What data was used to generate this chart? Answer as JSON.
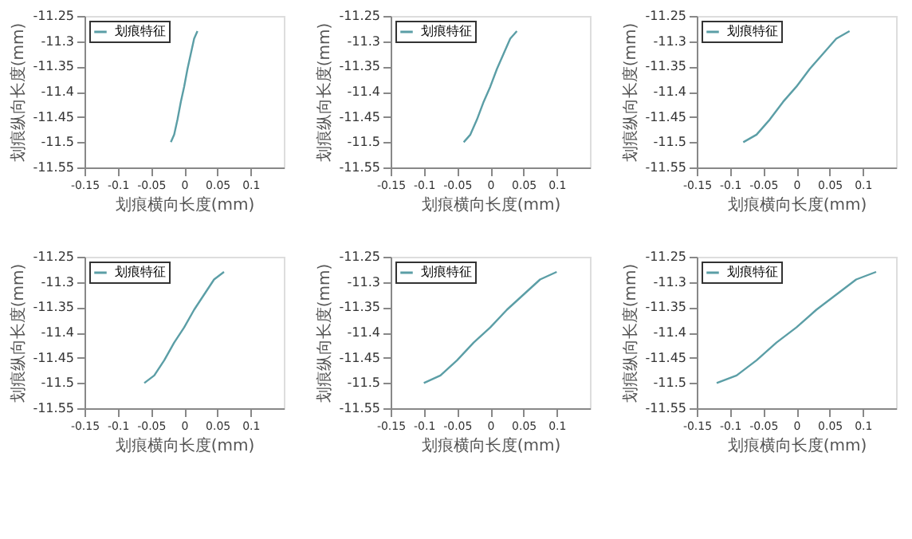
{
  "chart_data": [
    {
      "type": "line",
      "xlabel": "划痕横向长度(mm)",
      "ylabel": "划痕纵向长度(mm)",
      "xlim": [
        -0.15,
        0.15
      ],
      "ylim": [
        -11.55,
        -11.25
      ],
      "xticks": [
        -0.15,
        -0.1,
        -0.05,
        0,
        0.05,
        0.1
      ],
      "yticks": [
        -11.55,
        -11.5,
        -11.45,
        -11.4,
        -11.35,
        -11.3,
        -11.25
      ],
      "legend": "top left",
      "grid": false,
      "x": [
        -0.02,
        -0.015,
        -0.01,
        -0.005,
        0,
        0.005,
        0.01,
        0.015,
        0.02
      ],
      "series": [
        {
          "name": "划痕特征",
          "color": "#5b9ea6",
          "values": [
            -11.5,
            -11.485,
            -11.455,
            -11.42,
            -11.39,
            -11.355,
            -11.325,
            -11.295,
            -11.28
          ]
        }
      ]
    },
    {
      "type": "line",
      "xlabel": "划痕横向长度(mm)",
      "ylabel": "划痕纵向长度(mm)",
      "xlim": [
        -0.15,
        0.15
      ],
      "ylim": [
        -11.55,
        -11.25
      ],
      "xticks": [
        -0.15,
        -0.1,
        -0.05,
        0,
        0.05,
        0.1
      ],
      "yticks": [
        -11.55,
        -11.5,
        -11.45,
        -11.4,
        -11.35,
        -11.3,
        -11.25
      ],
      "legend": "top left",
      "grid": false,
      "x": [
        -0.04,
        -0.03,
        -0.02,
        -0.01,
        0,
        0.01,
        0.02,
        0.03,
        0.04
      ],
      "series": [
        {
          "name": "划痕特征",
          "color": "#5b9ea6",
          "values": [
            -11.5,
            -11.485,
            -11.455,
            -11.42,
            -11.39,
            -11.355,
            -11.325,
            -11.295,
            -11.28
          ]
        }
      ]
    },
    {
      "type": "line",
      "xlabel": "划痕横向长度(mm)",
      "ylabel": "划痕纵向长度(mm)",
      "xlim": [
        -0.15,
        0.15
      ],
      "ylim": [
        -11.55,
        -11.25
      ],
      "xticks": [
        -0.15,
        -0.1,
        -0.05,
        0,
        0.05,
        0.1
      ],
      "yticks": [
        -11.55,
        -11.5,
        -11.45,
        -11.4,
        -11.35,
        -11.3,
        -11.25
      ],
      "legend": "top left",
      "grid": false,
      "x": [
        -0.08,
        -0.06,
        -0.04,
        -0.02,
        0,
        0.02,
        0.04,
        0.06,
        0.08
      ],
      "series": [
        {
          "name": "划痕特征",
          "color": "#5b9ea6",
          "values": [
            -11.5,
            -11.485,
            -11.455,
            -11.42,
            -11.39,
            -11.355,
            -11.325,
            -11.295,
            -11.28
          ]
        }
      ]
    },
    {
      "type": "line",
      "xlabel": "划痕横向长度(mm)",
      "ylabel": "划痕纵向长度(mm)",
      "xlim": [
        -0.15,
        0.15
      ],
      "ylim": [
        -11.55,
        -11.25
      ],
      "xticks": [
        -0.15,
        -0.1,
        -0.05,
        0,
        0.05,
        0.1
      ],
      "yticks": [
        -11.55,
        -11.5,
        -11.45,
        -11.4,
        -11.35,
        -11.3,
        -11.25
      ],
      "legend": "top left",
      "grid": false,
      "x": [
        -0.06,
        -0.045,
        -0.03,
        -0.015,
        0,
        0.015,
        0.03,
        0.045,
        0.06
      ],
      "series": [
        {
          "name": "划痕特征",
          "color": "#5b9ea6",
          "values": [
            -11.5,
            -11.485,
            -11.455,
            -11.42,
            -11.39,
            -11.355,
            -11.325,
            -11.295,
            -11.28
          ]
        }
      ]
    },
    {
      "type": "line",
      "xlabel": "划痕横向长度(mm)",
      "ylabel": "划痕纵向长度(mm)",
      "xlim": [
        -0.15,
        0.15
      ],
      "ylim": [
        -11.55,
        -11.25
      ],
      "xticks": [
        -0.15,
        -0.1,
        -0.05,
        0,
        0.05,
        0.1
      ],
      "yticks": [
        -11.55,
        -11.5,
        -11.45,
        -11.4,
        -11.35,
        -11.3,
        -11.25
      ],
      "legend": "top left",
      "grid": false,
      "x": [
        -0.1,
        -0.075,
        -0.05,
        -0.025,
        0,
        0.025,
        0.05,
        0.075,
        0.1
      ],
      "series": [
        {
          "name": "划痕特征",
          "color": "#5b9ea6",
          "values": [
            -11.5,
            -11.485,
            -11.455,
            -11.42,
            -11.39,
            -11.355,
            -11.325,
            -11.295,
            -11.28
          ]
        }
      ]
    },
    {
      "type": "line",
      "xlabel": "划痕横向长度(mm)",
      "ylabel": "划痕纵向长度(mm)",
      "xlim": [
        -0.15,
        0.15
      ],
      "ylim": [
        -11.55,
        -11.25
      ],
      "xticks": [
        -0.15,
        -0.1,
        -0.05,
        0,
        0.05,
        0.1
      ],
      "yticks": [
        -11.55,
        -11.5,
        -11.45,
        -11.4,
        -11.35,
        -11.3,
        -11.25
      ],
      "legend": "top left",
      "grid": false,
      "x": [
        -0.12,
        -0.09,
        -0.06,
        -0.03,
        0,
        0.03,
        0.06,
        0.09,
        0.12
      ],
      "series": [
        {
          "name": "划痕特征",
          "color": "#5b9ea6",
          "values": [
            -11.5,
            -11.485,
            -11.455,
            -11.42,
            -11.39,
            -11.355,
            -11.325,
            -11.295,
            -11.28
          ]
        }
      ]
    }
  ]
}
